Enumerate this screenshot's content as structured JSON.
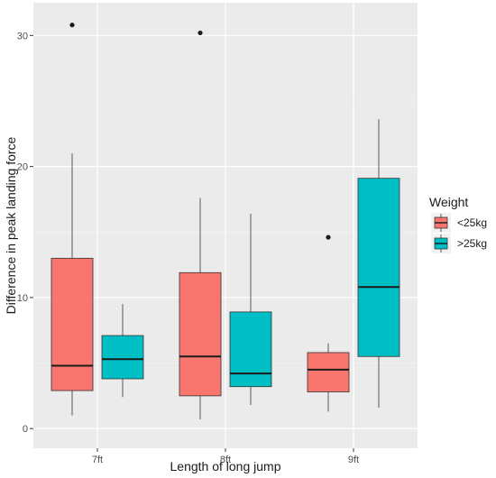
{
  "chart_data": {
    "type": "boxplot",
    "title": "",
    "xlabel": "Length of long jump",
    "ylabel": "Difference in peak landing force",
    "ylim": [
      -1.5,
      32.5
    ],
    "yticks": [
      0,
      10,
      20,
      30
    ],
    "categories": [
      "7ft",
      "8ft",
      "9ft"
    ],
    "legend": {
      "title": "Weight",
      "position": "right"
    },
    "grid": true,
    "series": [
      {
        "name": "<25kg",
        "color": "#F8766D",
        "boxes": [
          {
            "category": "7ft",
            "whisker_low": 1.0,
            "q1": 2.9,
            "median": 4.8,
            "q3": 13.0,
            "whisker_high": 21.0,
            "outliers": [
              30.8
            ]
          },
          {
            "category": "8ft",
            "whisker_low": 0.7,
            "q1": 2.5,
            "median": 5.5,
            "q3": 11.9,
            "whisker_high": 17.6,
            "outliers": [
              30.2
            ]
          },
          {
            "category": "9ft",
            "whisker_low": 1.3,
            "q1": 2.8,
            "median": 4.5,
            "q3": 5.8,
            "whisker_high": 6.5,
            "outliers": [
              14.6
            ]
          }
        ]
      },
      {
        "name": ">25kg",
        "color": "#00BFC4",
        "boxes": [
          {
            "category": "7ft",
            "whisker_low": 2.4,
            "q1": 3.8,
            "median": 5.3,
            "q3": 7.1,
            "whisker_high": 9.5,
            "outliers": []
          },
          {
            "category": "8ft",
            "whisker_low": 1.8,
            "q1": 3.2,
            "median": 4.2,
            "q3": 8.9,
            "whisker_high": 16.4,
            "outliers": []
          },
          {
            "category": "9ft",
            "whisker_low": 1.6,
            "q1": 5.5,
            "median": 10.8,
            "q3": 19.1,
            "whisker_high": 23.6,
            "outliers": []
          }
        ]
      }
    ]
  }
}
